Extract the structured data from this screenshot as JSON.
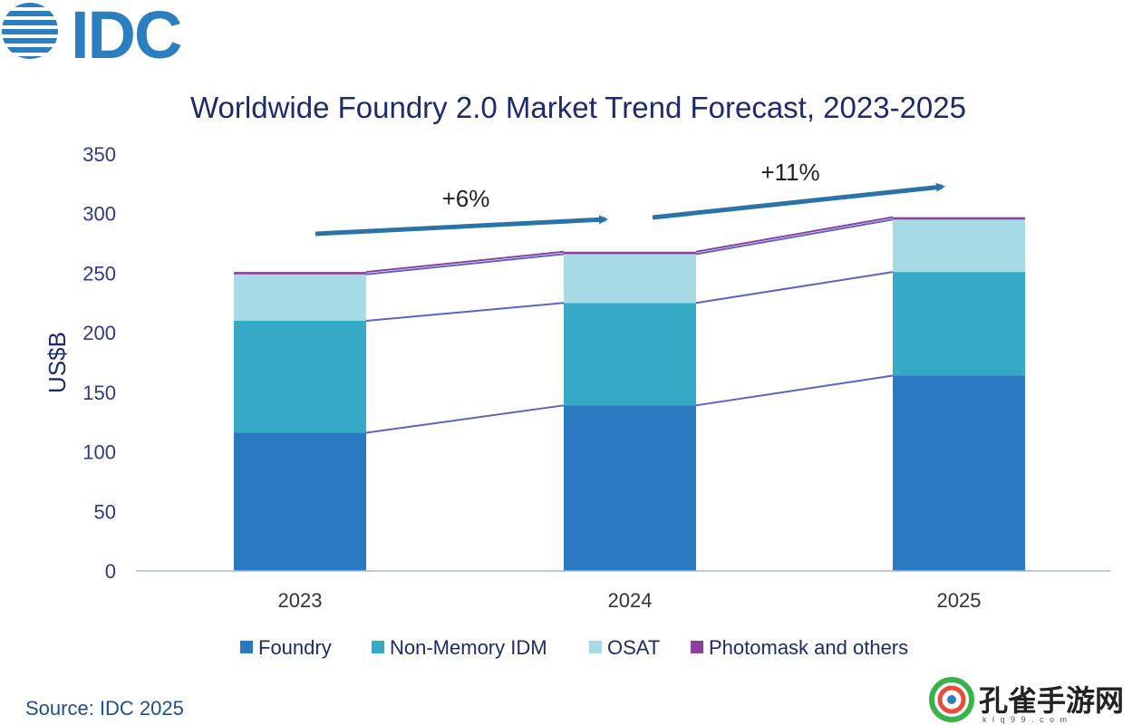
{
  "logo": {
    "text": "IDC"
  },
  "source": "Source: IDC 2025",
  "watermark": {
    "text": "孔雀手游网",
    "sub": "k l q 9 9 . c o m"
  },
  "chart_data": {
    "type": "bar",
    "stacked": true,
    "title": "Worldwide Foundry 2.0 Market Trend Forecast, 2023-2025",
    "ylabel": "US$B",
    "xlabel": "",
    "ylim": [
      0,
      350
    ],
    "yticks": [
      0,
      50,
      100,
      150,
      200,
      250,
      300,
      350
    ],
    "categories": [
      "2023",
      "2024",
      "2025"
    ],
    "series": [
      {
        "name": "Foundry",
        "color": "#2a78bf",
        "values": [
          116,
          139,
          164
        ]
      },
      {
        "name": "Non-Memory IDM",
        "color": "#36a9c6",
        "values": [
          94,
          86,
          87
        ]
      },
      {
        "name": "OSAT",
        "color": "#a6dbe6",
        "values": [
          39,
          41,
          44
        ]
      },
      {
        "name": "Photomask and others",
        "color": "#8e3e9c",
        "values": [
          2,
          2,
          2
        ]
      }
    ],
    "annotations": [
      {
        "text": "+6%",
        "from": "2023",
        "to": "2024"
      },
      {
        "text": "+11%",
        "from": "2024",
        "to": "2025"
      }
    ],
    "legend_position": "bottom",
    "grid": false
  }
}
